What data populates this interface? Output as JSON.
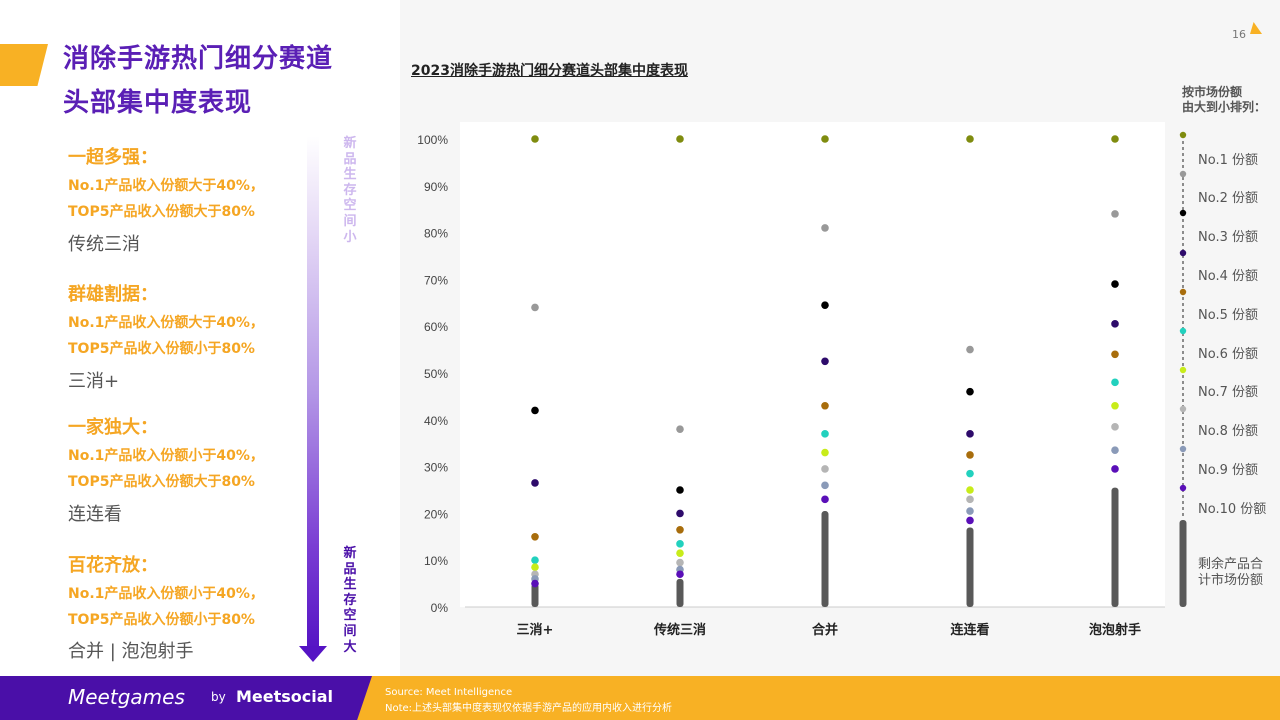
{
  "title_lines": [
    "消除手游热门细分赛道",
    "头部集中度表现"
  ],
  "categories": [
    {
      "title": "一超多强：",
      "line1": "No.1产品收入份额大于40%，",
      "line2": "TOP5产品收入份额大于80%",
      "example": "传统三消"
    },
    {
      "title": "群雄割据：",
      "line1": "No.1产品收入份额大于40%，",
      "line2": "TOP5产品收入份额小于80%",
      "example": "三消+"
    },
    {
      "title": "一家独大：",
      "line1": "No.1产品收入份额小于40%，",
      "line2": "TOP5产品收入份额大于80%",
      "example": "连连看"
    },
    {
      "title": "百花齐放：",
      "line1": "No.1产品收入份额小于40%，",
      "line2": "TOP5产品收入份额小于80%",
      "example": "合并 | 泡泡射手"
    }
  ],
  "arrow_top_text": "新品生存空间小",
  "arrow_bottom_text": "新品生存空间大",
  "page_number": "16",
  "legend_heading": [
    "按市场份额",
    "由大到小排列："
  ],
  "legend_rest_label": "剩余产品合计市场份额",
  "colors": {
    "purple": "#5a1fb5",
    "orange": "#f5a623",
    "bar": "#595959",
    "ranks": [
      "#7f8c0f",
      "#999999",
      "#000000",
      "#2e0b6b",
      "#a86d0c",
      "#22d1be",
      "#c8ec1a",
      "#b5b5b5",
      "#8a9ab8",
      "#5a0fb8"
    ]
  },
  "chart_data": {
    "type": "scatter",
    "title": "2023消除手游热门细分赛道头部集中度表现",
    "categories": [
      "三消+",
      "传统三消",
      "合并",
      "连连看",
      "泡泡射手"
    ],
    "y_ticks": [
      "0%",
      "10%",
      "20%",
      "30%",
      "40%",
      "50%",
      "60%",
      "70%",
      "80%",
      "90%",
      "100%"
    ],
    "ylim": [
      0,
      100
    ],
    "series": [
      {
        "name": "No.1 份额",
        "values": [
          100,
          100,
          100,
          100,
          100
        ]
      },
      {
        "name": "No.2 份额",
        "values": [
          64,
          38,
          81,
          55,
          84
        ]
      },
      {
        "name": "No.3 份额",
        "values": [
          42,
          25,
          64.5,
          46,
          69
        ]
      },
      {
        "name": "No.4 份额",
        "values": [
          26.5,
          20,
          52.5,
          37,
          60.5
        ]
      },
      {
        "name": "No.5 份额",
        "values": [
          15,
          16.5,
          43,
          32.5,
          54
        ]
      },
      {
        "name": "No.6 份额",
        "values": [
          10,
          13.5,
          37,
          28.5,
          48
        ]
      },
      {
        "name": "No.7 份额",
        "values": [
          8.5,
          11.5,
          33,
          25,
          43
        ]
      },
      {
        "name": "No.8 份额",
        "values": [
          7,
          9.5,
          29.5,
          23,
          38.5
        ]
      },
      {
        "name": "No.9 份额",
        "values": [
          6,
          8,
          26,
          20.5,
          33.5
        ]
      },
      {
        "name": "No.10 份额",
        "values": [
          5,
          7,
          23,
          18.5,
          29.5
        ]
      }
    ],
    "remaining": {
      "name": "剩余产品合计市场份额",
      "values": [
        5,
        6,
        20.5,
        17,
        25.5
      ]
    }
  },
  "footer": {
    "brand": "Meetgames",
    "by": "by",
    "partner": "Meetsocial",
    "source": "Source: Meet Intelligence",
    "note": "Note:上述头部集中度表现仅依据手游产品的应用内收入进行分析"
  }
}
